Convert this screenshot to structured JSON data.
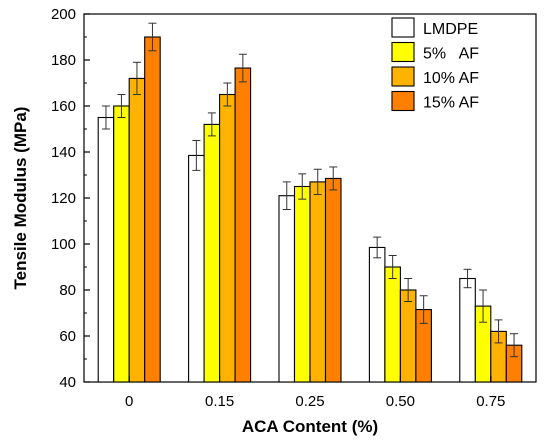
{
  "chart_data": {
    "type": "bar",
    "xlabel": "ACA Content (%)",
    "ylabel": "Tensile Modulus (MPa)",
    "ylim": [
      40,
      200
    ],
    "yticks": [
      40,
      60,
      80,
      100,
      120,
      140,
      160,
      180,
      200
    ],
    "categories": [
      "0",
      "0.15",
      "0.25",
      "0.50",
      "0.75"
    ],
    "legend_position": "top-right",
    "grid": false,
    "series": [
      {
        "name": "LMDPE",
        "color": "#ffffff",
        "values": [
          155,
          138.5,
          121,
          98.5,
          85
        ],
        "errors": [
          5,
          6.5,
          6,
          4.5,
          4
        ]
      },
      {
        "name": "5%   AF",
        "color": "#ffff00",
        "values": [
          160,
          152,
          125,
          90,
          73
        ],
        "errors": [
          5,
          5,
          5.5,
          5,
          7
        ]
      },
      {
        "name": "10% AF",
        "color": "#ffb300",
        "values": [
          172,
          165,
          127,
          80,
          62
        ],
        "errors": [
          7,
          5,
          5.5,
          5,
          5
        ]
      },
      {
        "name": "15% AF",
        "color": "#ff8000",
        "values": [
          190,
          176.5,
          128.5,
          71.5,
          56
        ],
        "errors": [
          6,
          6,
          5,
          6,
          5
        ]
      }
    ]
  }
}
